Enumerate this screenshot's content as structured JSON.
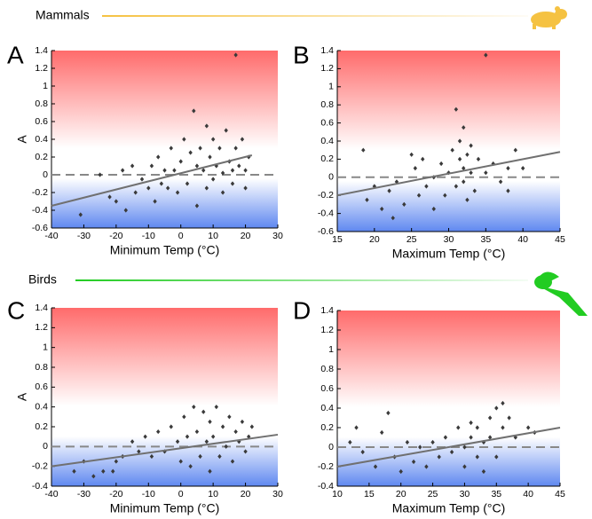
{
  "sections": [
    {
      "title": "Mammals",
      "color": "#f5c242"
    },
    {
      "title": "Birds",
      "color": "#22cc22"
    }
  ],
  "chart_data": [
    {
      "type": "scatter",
      "label": "A",
      "x_label": "Minimum Temp (°C)",
      "y_label": "A",
      "color": "#3a3a3a",
      "fit_color": "#707070",
      "reference_y": 0,
      "xlim": [
        -40,
        30
      ],
      "xticks": [
        -40,
        -30,
        -20,
        -10,
        0,
        10,
        20,
        30
      ],
      "ylim": [
        -0.6,
        1.4
      ],
      "yticks": [
        -0.6,
        -0.4,
        -0.2,
        0,
        0.2,
        0.4,
        0.6,
        0.8,
        1,
        1.2,
        1.4
      ],
      "fit": {
        "x": [
          -40,
          22
        ],
        "y": [
          -0.35,
          0.22
        ]
      },
      "x": [
        -31,
        -25,
        -22,
        -20,
        -18,
        -17,
        -15,
        -14,
        -12,
        -10,
        -9,
        -8,
        -7,
        -6,
        -5,
        -4,
        -3,
        -2,
        -1,
        0,
        1,
        2,
        3,
        4,
        5,
        5,
        6,
        7,
        8,
        8,
        9,
        10,
        10,
        11,
        12,
        13,
        13,
        14,
        15,
        16,
        16,
        17,
        17,
        18,
        19,
        20,
        20,
        21
      ],
      "values": [
        -0.45,
        0,
        -0.25,
        -0.3,
        0.05,
        -0.4,
        0.1,
        -0.2,
        -0.05,
        -0.15,
        0.1,
        -0.3,
        0.2,
        -0.1,
        0.05,
        -0.15,
        0.3,
        0.05,
        -0.2,
        0.15,
        0.4,
        -0.1,
        0.25,
        0.72,
        0.1,
        -0.35,
        0.3,
        0.05,
        0.55,
        -0.15,
        0.2,
        0.4,
        -0.05,
        0.1,
        0.3,
        0.02,
        -0.2,
        0.5,
        0.15,
        0.05,
        -0.1,
        1.35,
        0.3,
        0.1,
        0.4,
        0.05,
        -0.15,
        0.2
      ]
    },
    {
      "type": "scatter",
      "label": "B",
      "x_label": "Maximum Temp (°C)",
      "color": "#3a3a3a",
      "fit_color": "#707070",
      "reference_y": 0,
      "xlim": [
        15,
        45
      ],
      "xticks": [
        15,
        20,
        25,
        30,
        35,
        40,
        45
      ],
      "ylim": [
        -0.6,
        1.4
      ],
      "yticks": [
        -0.6,
        -0.4,
        -0.2,
        0,
        0.2,
        0.4,
        0.6,
        0.8,
        1,
        1.2,
        1.4
      ],
      "fit": {
        "x": [
          15,
          45
        ],
        "y": [
          -0.2,
          0.28
        ]
      },
      "x": [
        18.5,
        19,
        20,
        21,
        22,
        22.5,
        23,
        24,
        25,
        25.5,
        26,
        26.5,
        27,
        28,
        28,
        29,
        29.5,
        30,
        30.5,
        31,
        31,
        31.5,
        31.5,
        32,
        32,
        32,
        32.5,
        32.5,
        33,
        33,
        33.5,
        34,
        35,
        35,
        36,
        37,
        38,
        38,
        39,
        40
      ],
      "values": [
        0.3,
        -0.25,
        -0.1,
        -0.35,
        -0.15,
        -0.45,
        -0.05,
        -0.3,
        0.25,
        0.1,
        -0.2,
        0.2,
        -0.1,
        0,
        -0.35,
        0.15,
        -0.2,
        0.05,
        0.3,
        0.75,
        -0.1,
        0.2,
        0.4,
        0.1,
        -0.05,
        0.55,
        0.25,
        -0.25,
        0.05,
        0.35,
        -0.15,
        0.2,
        1.35,
        0.05,
        0.15,
        -0.05,
        0.1,
        -0.15,
        0.3,
        0.1
      ]
    },
    {
      "type": "scatter",
      "label": "C",
      "x_label": "Minimum Temp (°C)",
      "y_label": "A",
      "color": "#3a3a3a",
      "fit_color": "#707070",
      "reference_y": 0,
      "xlim": [
        -40,
        30
      ],
      "xticks": [
        -40,
        -30,
        -20,
        -10,
        0,
        10,
        20,
        30
      ],
      "ylim": [
        -0.4,
        1.4
      ],
      "yticks": [
        -0.4,
        -0.2,
        0,
        0.2,
        0.4,
        0.6,
        0.8,
        1,
        1.2,
        1.4
      ],
      "fit": {
        "x": [
          -40,
          30
        ],
        "y": [
          -0.2,
          0.12
        ]
      },
      "x": [
        -33,
        -30,
        -27,
        -24,
        -21,
        -20,
        -18,
        -15,
        -13,
        -11,
        -9,
        -7,
        -5,
        -3,
        -1,
        0,
        1,
        2,
        3,
        4,
        5,
        6,
        7,
        8,
        9,
        9,
        10,
        11,
        12,
        13,
        14,
        15,
        16,
        17,
        18,
        19,
        20,
        21,
        22
      ],
      "values": [
        -0.25,
        -0.15,
        -0.3,
        -0.25,
        -0.25,
        -0.15,
        -0.1,
        0.05,
        -0.05,
        0.1,
        -0.1,
        0.15,
        -0.05,
        0.2,
        0.05,
        -0.15,
        0.3,
        0.1,
        -0.2,
        0.4,
        0.15,
        -0.1,
        0.35,
        0.05,
        0.25,
        -0.25,
        0.1,
        0.4,
        -0.1,
        0.2,
        0,
        0.3,
        -0.15,
        0.15,
        0.05,
        0.25,
        -0.05,
        0.1,
        0.2
      ]
    },
    {
      "type": "scatter",
      "label": "D",
      "x_label": "Maximum Temp (°C)",
      "color": "#3a3a3a",
      "fit_color": "#707070",
      "reference_y": 0,
      "xlim": [
        10,
        45
      ],
      "xticks": [
        10,
        15,
        20,
        25,
        30,
        35,
        40,
        45
      ],
      "ylim": [
        -0.4,
        1.4
      ],
      "yticks": [
        -0.4,
        -0.2,
        0,
        0.2,
        0.4,
        0.6,
        0.8,
        1,
        1.2,
        1.4
      ],
      "fit": {
        "x": [
          10,
          45
        ],
        "y": [
          -0.2,
          0.2
        ]
      },
      "x": [
        12,
        13,
        14,
        16,
        17,
        18,
        19,
        20,
        21,
        22,
        23,
        24,
        25,
        26,
        27,
        28,
        29,
        30,
        30,
        31,
        31,
        32,
        32,
        33,
        33,
        34,
        34,
        35,
        35,
        36,
        36,
        37,
        38,
        40,
        41
      ],
      "values": [
        0.05,
        0.2,
        -0.05,
        -0.2,
        0.15,
        0.35,
        -0.1,
        -0.25,
        0.05,
        -0.15,
        0,
        -0.2,
        0.05,
        -0.1,
        0.1,
        -0.05,
        0.2,
        0,
        -0.2,
        0.25,
        0.1,
        -0.1,
        0.2,
        0.05,
        -0.25,
        0.3,
        0.1,
        0.4,
        -0.1,
        0.45,
        0.2,
        0.3,
        0.1,
        0.2,
        0.15
      ]
    }
  ]
}
